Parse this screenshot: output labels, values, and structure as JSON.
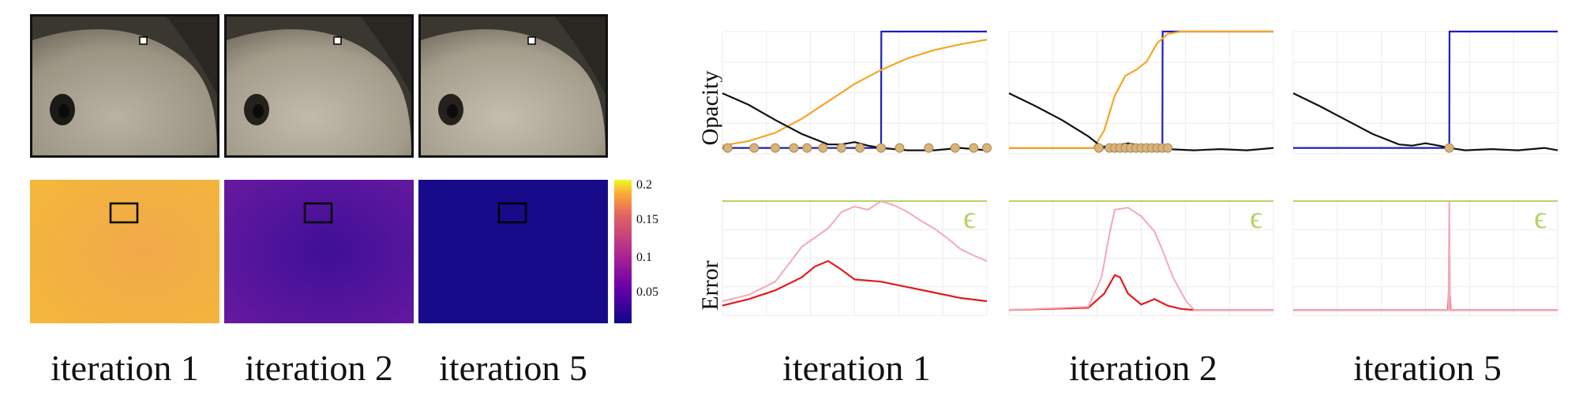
{
  "figure": {
    "left_captions": [
      "iteration 1",
      "iteration 2",
      "iteration 5"
    ],
    "right_captions": [
      "iteration 1",
      "iteration 2",
      "iteration 5"
    ],
    "opacity_label": "Opacity",
    "error_label": "Error",
    "epsilon_symbol": "ϵ",
    "colorbar_ticks": [
      "0.2",
      "0.15",
      "0.1",
      "0.05"
    ],
    "colors": {
      "blue": "#1f1fb4",
      "orange": "#f5a623",
      "black": "#111111",
      "red": "#e31a1c",
      "pink": "#f4a9b8",
      "epsilon_line": "#b5d36a",
      "sample_dot": "#d9b47a",
      "grid": "#ececec",
      "heat_iter1": "#f2b042",
      "heat_iter2": "#5a169c",
      "heat_iter5": "#180c8c"
    }
  },
  "chart_data": [
    {
      "type": "line",
      "panel": "opacity-iteration-1",
      "ylabel": "Opacity",
      "series": [
        {
          "color": "blue",
          "x": [
            0,
            0.6,
            0.601,
            1
          ],
          "y": [
            0.0,
            0.0,
            1.0,
            1.0
          ]
        },
        {
          "color": "orange",
          "x": [
            0,
            0.1,
            0.2,
            0.3,
            0.4,
            0.5,
            0.6,
            0.7,
            0.8,
            0.9,
            1.0
          ],
          "y": [
            0.02,
            0.06,
            0.13,
            0.25,
            0.4,
            0.55,
            0.67,
            0.77,
            0.84,
            0.89,
            0.93
          ]
        },
        {
          "color": "black",
          "x": [
            0,
            0.1,
            0.2,
            0.3,
            0.4,
            0.45,
            0.5,
            0.55,
            0.6,
            0.7,
            0.8,
            0.9,
            1.0
          ],
          "y": [
            0.47,
            0.37,
            0.24,
            0.12,
            0.03,
            0.03,
            0.05,
            0.02,
            0.0,
            -0.02,
            -0.02,
            0.0,
            -0.02
          ]
        }
      ],
      "samples_x": [
        0.02,
        0.12,
        0.2,
        0.27,
        0.32,
        0.38,
        0.45,
        0.52,
        0.6,
        0.67,
        0.78,
        0.88,
        0.95,
        1.0
      ]
    },
    {
      "type": "line",
      "panel": "opacity-iteration-2",
      "series": [
        {
          "color": "blue",
          "x": [
            0,
            0.58,
            0.581,
            1
          ],
          "y": [
            0.0,
            0.0,
            1.0,
            1.0
          ]
        },
        {
          "color": "orange",
          "x": [
            0,
            0.32,
            0.36,
            0.4,
            0.44,
            0.48,
            0.52,
            0.56,
            0.6,
            0.65,
            1.0
          ],
          "y": [
            0.0,
            0.0,
            0.15,
            0.45,
            0.62,
            0.67,
            0.74,
            0.9,
            0.98,
            1.0,
            1.0
          ]
        },
        {
          "color": "black",
          "x": [
            0,
            0.1,
            0.2,
            0.3,
            0.35,
            0.4,
            0.45,
            0.5,
            0.6,
            0.7,
            0.8,
            0.9,
            1.0
          ],
          "y": [
            0.47,
            0.36,
            0.24,
            0.1,
            0.01,
            0.02,
            0.04,
            0.02,
            -0.01,
            -0.02,
            -0.01,
            -0.02,
            0.0
          ]
        }
      ],
      "samples_x": [
        0.34,
        0.38,
        0.4,
        0.42,
        0.44,
        0.46,
        0.48,
        0.5,
        0.52,
        0.54,
        0.56,
        0.58,
        0.6
      ]
    },
    {
      "type": "line",
      "panel": "opacity-iteration-5",
      "series": [
        {
          "color": "blue",
          "x": [
            0,
            0.59,
            0.591,
            1
          ],
          "y": [
            0.0,
            0.0,
            1.0,
            1.0
          ]
        },
        {
          "color": "black",
          "x": [
            0,
            0.1,
            0.2,
            0.3,
            0.4,
            0.45,
            0.5,
            0.55,
            0.59,
            0.65,
            0.75,
            0.85,
            0.95,
            1.0
          ],
          "y": [
            0.47,
            0.36,
            0.24,
            0.12,
            0.03,
            0.02,
            0.04,
            0.02,
            0.0,
            -0.02,
            -0.01,
            -0.02,
            0.0,
            -0.02
          ]
        }
      ],
      "samples_x": [
        0.59
      ]
    },
    {
      "type": "line",
      "panel": "error-iteration-1",
      "ylabel": "Error",
      "epsilon": 1.0,
      "series": [
        {
          "color": "red",
          "x": [
            0,
            0.1,
            0.2,
            0.3,
            0.35,
            0.4,
            0.45,
            0.5,
            0.6,
            0.7,
            0.8,
            0.9,
            1.0
          ],
          "y": [
            0.04,
            0.1,
            0.18,
            0.3,
            0.4,
            0.45,
            0.37,
            0.28,
            0.26,
            0.21,
            0.16,
            0.11,
            0.08
          ]
        },
        {
          "color": "pink",
          "x": [
            0,
            0.1,
            0.2,
            0.3,
            0.4,
            0.45,
            0.5,
            0.55,
            0.6,
            0.65,
            0.7,
            0.75,
            0.8,
            0.85,
            0.9,
            0.95,
            1.0
          ],
          "y": [
            0.08,
            0.14,
            0.26,
            0.58,
            0.75,
            0.9,
            0.95,
            0.92,
            1.0,
            0.96,
            0.9,
            0.82,
            0.75,
            0.66,
            0.56,
            0.5,
            0.45
          ]
        }
      ]
    },
    {
      "type": "line",
      "panel": "error-iteration-2",
      "epsilon": 1.0,
      "series": [
        {
          "color": "red",
          "x": [
            0,
            0.3,
            0.36,
            0.4,
            0.42,
            0.45,
            0.5,
            0.55,
            0.6,
            0.65,
            0.7,
            1.0
          ],
          "y": [
            0.0,
            0.02,
            0.15,
            0.32,
            0.3,
            0.15,
            0.05,
            0.1,
            0.04,
            0.01,
            0.0,
            0.0
          ]
        },
        {
          "color": "pink",
          "x": [
            0,
            0.3,
            0.35,
            0.38,
            0.4,
            0.45,
            0.5,
            0.55,
            0.58,
            0.62,
            0.67,
            0.7,
            1.0
          ],
          "y": [
            0.0,
            0.03,
            0.3,
            0.7,
            0.92,
            0.94,
            0.86,
            0.72,
            0.55,
            0.3,
            0.08,
            0.0,
            0.0
          ]
        }
      ]
    },
    {
      "type": "line",
      "panel": "error-iteration-5",
      "epsilon": 1.0,
      "series": [
        {
          "color": "red",
          "x": [
            0,
            0.585,
            0.59,
            0.595,
            1.0
          ],
          "y": [
            0.0,
            0.0,
            0.26,
            0.0,
            0.0
          ]
        },
        {
          "color": "pink",
          "x": [
            0,
            0.587,
            0.59,
            0.593,
            1.0
          ],
          "y": [
            0.0,
            0.0,
            1.0,
            0.0,
            0.0
          ]
        }
      ]
    }
  ]
}
